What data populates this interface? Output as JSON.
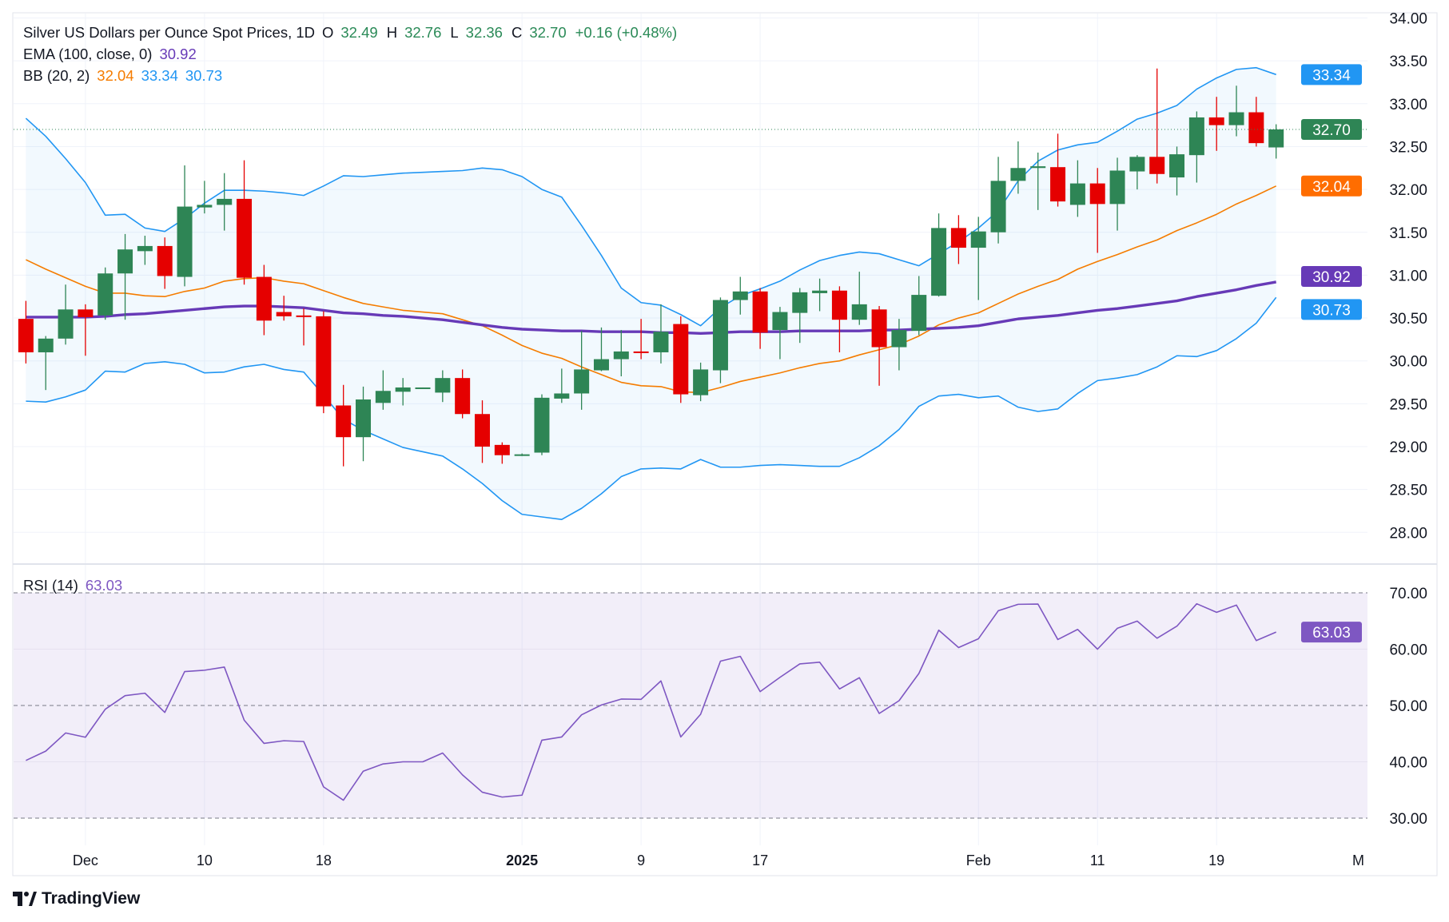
{
  "legend": {
    "symbol_title": "Silver US Dollars per Ounce Spot Prices, 1D",
    "open_label": "O",
    "open": "32.49",
    "high_label": "H",
    "high": "32.76",
    "low_label": "L",
    "low": "32.36",
    "close_label": "C",
    "close": "32.70",
    "change": "+0.16 (+0.48%)",
    "ema_label": "EMA (100, close, 0)",
    "ema_value": "30.92",
    "bb_label": "BB (20, 2)",
    "bb_basis": "32.04",
    "bb_upper": "33.34",
    "bb_lower": "30.73",
    "rsi_label": "RSI (14)",
    "rsi_value": "63.03"
  },
  "price_badges": {
    "bb_upper": "33.34",
    "last": "32.70",
    "bb_basis": "32.04",
    "ema": "30.92",
    "bb_lower": "30.73",
    "rsi": "63.03"
  },
  "branding": {
    "name": "TradingView"
  },
  "colors": {
    "up": "#2e8555",
    "down": "#e50000",
    "ema": "#673ab7",
    "bb_band": "#2196f3",
    "bb_basis": "#f57c00",
    "rsi": "#7e57c2",
    "legend_up": "#2a8a57"
  },
  "chart_data": {
    "type": "candlestick",
    "title": "Silver US Dollars per Ounce Spot Prices, 1D",
    "price_axis": {
      "ylim": [
        28,
        34
      ],
      "ticks": [
        "28.00",
        "28.50",
        "29.00",
        "29.50",
        "30.00",
        "30.50",
        "31.00",
        "31.50",
        "32.00",
        "32.50",
        "33.00",
        "33.50",
        "34.00"
      ]
    },
    "x_ticks": [
      {
        "label": "Dec",
        "bar": 3,
        "bold": false
      },
      {
        "label": "10",
        "bar": 9,
        "bold": false
      },
      {
        "label": "18",
        "bar": 15,
        "bold": false
      },
      {
        "label": "2025",
        "bar": 25,
        "bold": true
      },
      {
        "label": "9",
        "bar": 31,
        "bold": false
      },
      {
        "label": "17",
        "bar": 37,
        "bold": false
      },
      {
        "label": "Feb",
        "bar": 48,
        "bold": false
      },
      {
        "label": "11",
        "bar": 54,
        "bold": false
      },
      {
        "label": "19",
        "bar": 60,
        "bold": false
      },
      {
        "label": "M",
        "bar": 68,
        "bold": false
      }
    ],
    "ohlc": [
      [
        30.49,
        30.7,
        29.97,
        30.1
      ],
      [
        30.1,
        30.29,
        29.66,
        30.26
      ],
      [
        30.26,
        30.89,
        30.19,
        30.6
      ],
      [
        30.6,
        30.66,
        30.06,
        30.51
      ],
      [
        30.53,
        31.09,
        30.48,
        31.02
      ],
      [
        31.02,
        31.48,
        30.48,
        31.3
      ],
      [
        31.28,
        31.46,
        31.12,
        31.34
      ],
      [
        31.34,
        31.44,
        30.84,
        30.99
      ],
      [
        30.98,
        32.28,
        30.87,
        31.8
      ],
      [
        31.79,
        32.1,
        31.72,
        31.82
      ],
      [
        31.82,
        32.19,
        31.52,
        31.89
      ],
      [
        31.89,
        32.34,
        30.89,
        30.97
      ],
      [
        30.98,
        31.12,
        30.3,
        30.47
      ],
      [
        30.57,
        30.76,
        30.47,
        30.52
      ],
      [
        30.53,
        30.61,
        30.18,
        30.52
      ],
      [
        30.52,
        30.58,
        29.39,
        29.47
      ],
      [
        29.48,
        29.72,
        28.77,
        29.11
      ],
      [
        29.11,
        29.7,
        28.83,
        29.55
      ],
      [
        29.51,
        29.89,
        29.43,
        29.65
      ],
      [
        29.64,
        29.8,
        29.48,
        29.69
      ],
      [
        29.68,
        29.69,
        29.68,
        29.69
      ],
      [
        29.63,
        29.89,
        29.52,
        29.8
      ],
      [
        29.8,
        29.9,
        29.33,
        29.38
      ],
      [
        29.38,
        29.54,
        28.81,
        29.0
      ],
      [
        29.02,
        29.05,
        28.8,
        28.9
      ],
      [
        28.9,
        28.92,
        28.89,
        28.91
      ],
      [
        28.93,
        29.61,
        28.9,
        29.57
      ],
      [
        29.56,
        29.91,
        29.51,
        29.62
      ],
      [
        29.62,
        30.35,
        29.43,
        29.9
      ],
      [
        29.89,
        30.39,
        29.88,
        30.02
      ],
      [
        30.02,
        30.36,
        29.82,
        30.11
      ],
      [
        30.11,
        30.49,
        30.02,
        30.1
      ],
      [
        30.1,
        30.66,
        29.97,
        30.34
      ],
      [
        30.43,
        30.52,
        29.51,
        29.61
      ],
      [
        29.6,
        29.98,
        29.53,
        29.9
      ],
      [
        29.89,
        30.74,
        29.74,
        30.71
      ],
      [
        30.71,
        30.98,
        30.54,
        30.81
      ],
      [
        30.81,
        30.85,
        30.14,
        30.33
      ],
      [
        30.36,
        30.63,
        30.02,
        30.57
      ],
      [
        30.56,
        30.85,
        30.21,
        30.8
      ],
      [
        30.79,
        30.96,
        30.58,
        30.82
      ],
      [
        30.82,
        30.87,
        30.1,
        30.48
      ],
      [
        30.48,
        31.04,
        30.42,
        30.66
      ],
      [
        30.6,
        30.64,
        29.71,
        30.16
      ],
      [
        30.16,
        30.49,
        29.89,
        30.36
      ],
      [
        30.35,
        30.99,
        30.3,
        30.77
      ],
      [
        30.76,
        31.72,
        30.75,
        31.55
      ],
      [
        31.55,
        31.7,
        31.13,
        31.32
      ],
      [
        31.32,
        31.68,
        30.71,
        31.51
      ],
      [
        31.5,
        32.38,
        31.37,
        32.1
      ],
      [
        32.1,
        32.56,
        31.95,
        32.25
      ],
      [
        32.25,
        32.43,
        31.76,
        32.27
      ],
      [
        32.26,
        32.65,
        31.8,
        31.86
      ],
      [
        31.82,
        32.34,
        31.68,
        32.07
      ],
      [
        32.07,
        32.25,
        31.26,
        31.83
      ],
      [
        31.83,
        32.37,
        31.52,
        32.22
      ],
      [
        32.21,
        32.4,
        32.0,
        32.38
      ],
      [
        32.38,
        33.41,
        32.07,
        32.18
      ],
      [
        32.14,
        32.5,
        31.93,
        32.41
      ],
      [
        32.4,
        32.91,
        32.08,
        32.84
      ],
      [
        32.84,
        33.08,
        32.45,
        32.75
      ],
      [
        32.75,
        33.21,
        32.62,
        32.9
      ],
      [
        32.9,
        33.08,
        32.5,
        32.54
      ],
      [
        32.49,
        32.76,
        32.36,
        32.7
      ]
    ],
    "ema100": [
      30.51,
      30.51,
      30.51,
      30.51,
      30.52,
      30.54,
      30.55,
      30.57,
      30.59,
      30.61,
      30.63,
      30.64,
      30.64,
      30.63,
      30.62,
      30.59,
      30.56,
      30.55,
      30.53,
      30.52,
      30.5,
      30.48,
      30.45,
      30.42,
      30.39,
      30.37,
      30.36,
      30.35,
      30.35,
      30.34,
      30.34,
      30.34,
      30.33,
      30.33,
      30.32,
      30.33,
      30.34,
      30.34,
      30.34,
      30.35,
      30.35,
      30.35,
      30.35,
      30.36,
      30.36,
      30.37,
      30.38,
      30.39,
      30.41,
      30.45,
      30.49,
      30.51,
      30.53,
      30.56,
      30.59,
      30.61,
      30.64,
      30.67,
      30.7,
      30.75,
      30.79,
      30.83,
      30.88,
      30.92
    ],
    "bb_basis": [
      31.18,
      31.07,
      30.97,
      30.87,
      30.79,
      30.79,
      30.76,
      30.75,
      30.81,
      30.85,
      30.93,
      30.96,
      30.97,
      30.93,
      30.9,
      30.82,
      30.74,
      30.67,
      30.63,
      30.59,
      30.57,
      30.55,
      30.48,
      30.41,
      30.3,
      30.18,
      30.09,
      30.03,
      29.93,
      29.84,
      29.75,
      29.71,
      29.7,
      29.64,
      29.63,
      29.69,
      29.76,
      29.81,
      29.86,
      29.92,
      29.97,
      30.0,
      30.07,
      30.13,
      30.19,
      30.29,
      30.42,
      30.5,
      30.56,
      30.67,
      30.78,
      30.87,
      30.95,
      31.07,
      31.16,
      31.24,
      31.33,
      31.41,
      31.52,
      31.61,
      31.71,
      31.83,
      31.93,
      32.04
    ],
    "bb_upper": [
      32.83,
      32.62,
      32.36,
      32.08,
      31.7,
      31.71,
      31.55,
      31.51,
      31.66,
      31.84,
      31.99,
      31.99,
      31.98,
      31.96,
      31.93,
      32.04,
      32.16,
      32.15,
      32.17,
      32.19,
      32.2,
      32.21,
      32.22,
      32.25,
      32.23,
      32.15,
      32.0,
      31.91,
      31.58,
      31.23,
      30.85,
      30.68,
      30.65,
      30.54,
      30.41,
      30.62,
      30.76,
      30.84,
      30.93,
      31.06,
      31.17,
      31.23,
      31.27,
      31.25,
      31.18,
      31.11,
      31.25,
      31.39,
      31.55,
      31.75,
      32.1,
      32.33,
      32.46,
      32.52,
      32.55,
      32.68,
      32.82,
      32.89,
      32.98,
      33.17,
      33.3,
      33.4,
      33.42,
      33.34
    ],
    "rsi": {
      "ylim": [
        30,
        70
      ],
      "ticks": [
        "30.00",
        "40.00",
        "50.00",
        "60.00",
        "70.00"
      ],
      "levels": [
        70,
        50,
        30
      ],
      "values": [
        40.24,
        41.9,
        45.12,
        44.36,
        49.34,
        51.75,
        52.18,
        48.77,
        56.02,
        56.26,
        56.82,
        47.39,
        43.27,
        43.74,
        43.6,
        35.55,
        33.18,
        38.34,
        39.62,
        40.0,
        40.0,
        41.56,
        37.68,
        34.6,
        33.74,
        34.08,
        43.84,
        44.41,
        48.34,
        50.09,
        51.14,
        51.09,
        54.36,
        44.41,
        48.44,
        57.87,
        58.72,
        52.46,
        55.0,
        57.39,
        57.68,
        52.94,
        54.93,
        48.58,
        50.85,
        55.69,
        63.37,
        60.28,
        61.85,
        66.82,
        67.96,
        68.0,
        61.71,
        63.51,
        60.0,
        63.7,
        64.98,
        61.94,
        64.08,
        68.06,
        66.54,
        67.82,
        61.52,
        63.03
      ]
    }
  }
}
